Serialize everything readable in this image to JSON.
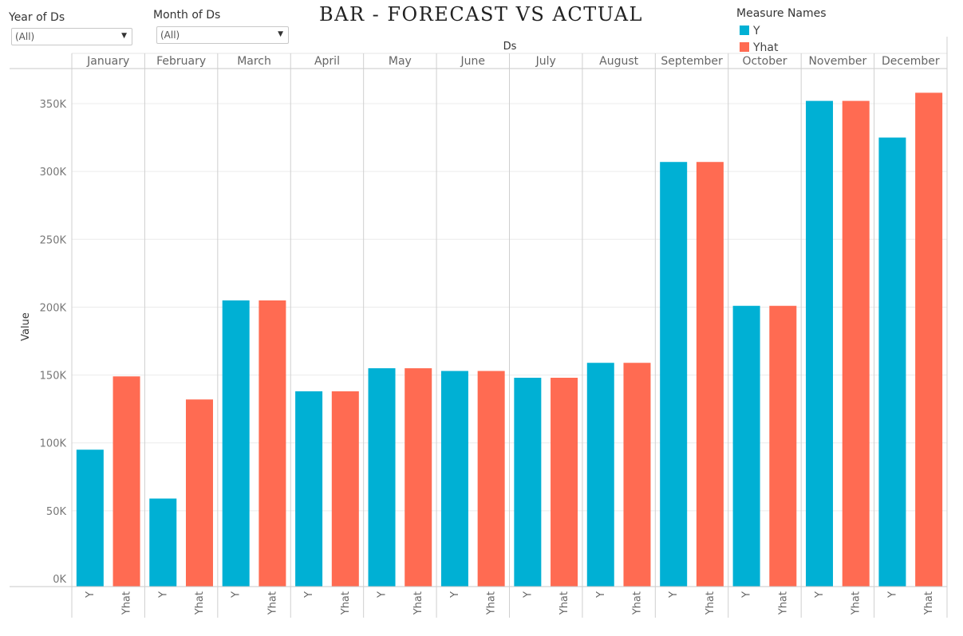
{
  "title": "BAR - FORECAST VS ACTUAL",
  "filters": [
    {
      "label": "Year of Ds",
      "value": "(All)"
    },
    {
      "label": "Month of Ds",
      "value": "(All)"
    }
  ],
  "legend": {
    "title": "Measure Names",
    "items": [
      {
        "label": "Y",
        "color": "#00b0d4"
      },
      {
        "label": "Yhat",
        "color": "#ff6b52"
      }
    ]
  },
  "chart_data": {
    "type": "bar",
    "column_header": "Ds",
    "ylabel": "Value",
    "ylim": [
      0,
      375000
    ],
    "yticks": [
      0,
      50000,
      100000,
      150000,
      200000,
      250000,
      300000,
      350000
    ],
    "ytick_labels": [
      "0K",
      "50K",
      "100K",
      "150K",
      "200K",
      "250K",
      "300K",
      "350K"
    ],
    "grid": true,
    "categories": [
      "January",
      "February",
      "March",
      "April",
      "May",
      "June",
      "July",
      "August",
      "September",
      "October",
      "November",
      "December"
    ],
    "series": [
      {
        "name": "Y",
        "color": "#00b0d4",
        "values": [
          95000,
          59000,
          205000,
          138000,
          155000,
          153000,
          148000,
          159000,
          307000,
          201000,
          352000,
          325000
        ]
      },
      {
        "name": "Yhat",
        "color": "#ff6b52",
        "values": [
          149000,
          132000,
          205000,
          138000,
          155000,
          153000,
          148000,
          159000,
          307000,
          201000,
          352000,
          358000
        ]
      }
    ]
  }
}
